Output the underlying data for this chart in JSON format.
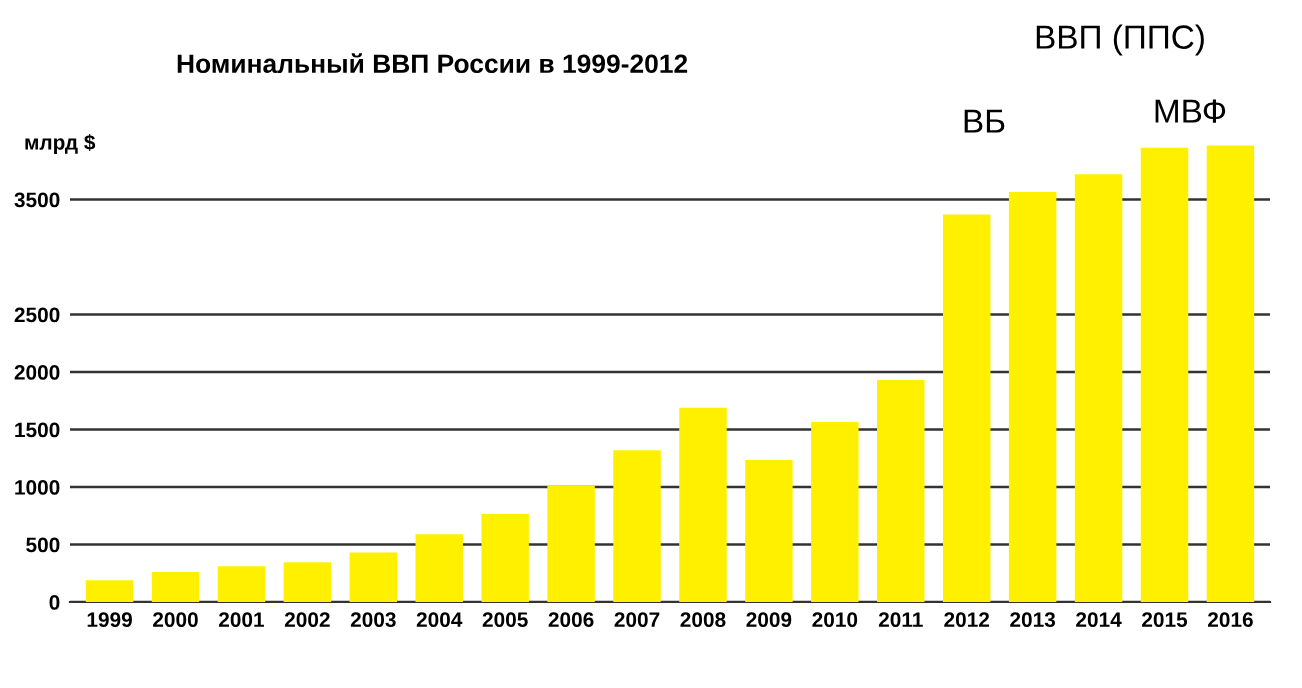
{
  "chart_data": {
    "type": "bar",
    "title": "Номинальный ВВП России в 1999-2012",
    "ylabel": "млрд $",
    "categories": [
      "1999",
      "2000",
      "2001",
      "2002",
      "2003",
      "2004",
      "2005",
      "2006",
      "2007",
      "2008",
      "2009",
      "2010",
      "2011",
      "2012",
      "2013",
      "2014",
      "2015",
      "2016"
    ],
    "values": [
      190,
      260,
      310,
      345,
      430,
      590,
      765,
      1010,
      1320,
      1690,
      1235,
      1565,
      1930,
      3370,
      3565,
      3720,
      3950,
      3970
    ],
    "color": "#fff000",
    "ylim": [
      0,
      4000
    ],
    "yticks": [
      0,
      500,
      1000,
      1500,
      2000,
      2500,
      3500
    ],
    "grid": "y",
    "annotations": [
      "ВБ",
      "ВВП (ППС)",
      "МВФ"
    ]
  }
}
